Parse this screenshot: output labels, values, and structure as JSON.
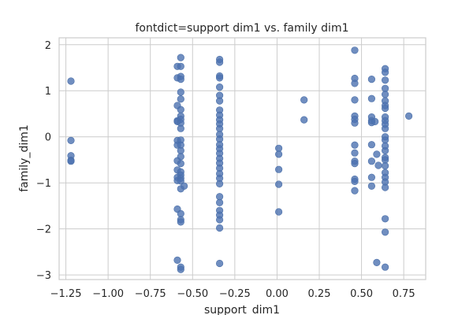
{
  "chart_data": {
    "type": "scatter",
    "title": "fontdict=support dim1 vs. family dim1",
    "xlabel": "support_dim1",
    "ylabel": "family_dim1",
    "xlim": [
      -1.29,
      0.88
    ],
    "ylim": [
      -3.1,
      2.15
    ],
    "xticks": [
      -1.25,
      -1.0,
      -0.75,
      -0.5,
      -0.25,
      0.0,
      0.25,
      0.5,
      0.75
    ],
    "xtick_labels": [
      "−1.25",
      "−1.00",
      "−0.75",
      "−0.50",
      "−0.25",
      "0.00",
      "0.25",
      "0.50",
      "0.75"
    ],
    "yticks": [
      -3,
      -2,
      -1,
      0,
      1,
      2
    ],
    "ytick_labels": [
      "−3",
      "−2",
      "−1",
      "0",
      "1",
      "2"
    ],
    "grid": true,
    "color": "#4c72b0",
    "alpha": 0.8,
    "points": [
      [
        -1.22,
        1.21
      ],
      [
        -1.22,
        -0.08
      ],
      [
        -1.22,
        -0.41
      ],
      [
        -1.22,
        -0.51
      ],
      [
        -1.22,
        -0.53
      ],
      [
        -0.59,
        1.53
      ],
      [
        -0.59,
        1.28
      ],
      [
        -0.59,
        0.68
      ],
      [
        -0.59,
        0.35
      ],
      [
        -0.59,
        0.33
      ],
      [
        -0.59,
        -0.08
      ],
      [
        -0.59,
        -0.18
      ],
      [
        -0.59,
        -0.52
      ],
      [
        -0.59,
        -0.72
      ],
      [
        -0.59,
        -0.88
      ],
      [
        -0.59,
        -0.95
      ],
      [
        -0.59,
        -1.57
      ],
      [
        -0.59,
        -2.68
      ],
      [
        -0.57,
        1.72
      ],
      [
        -0.57,
        1.53
      ],
      [
        -0.57,
        1.31
      ],
      [
        -0.57,
        1.25
      ],
      [
        -0.57,
        0.97
      ],
      [
        -0.57,
        0.82
      ],
      [
        -0.57,
        0.59
      ],
      [
        -0.57,
        0.45
      ],
      [
        -0.57,
        0.38
      ],
      [
        -0.57,
        0.3
      ],
      [
        -0.57,
        0.18
      ],
      [
        -0.57,
        -0.07
      ],
      [
        -0.57,
        -0.18
      ],
      [
        -0.57,
        -0.3
      ],
      [
        -0.57,
        -0.43
      ],
      [
        -0.57,
        -0.58
      ],
      [
        -0.57,
        -0.76
      ],
      [
        -0.57,
        -0.83
      ],
      [
        -0.57,
        -0.9
      ],
      [
        -0.57,
        -0.96
      ],
      [
        -0.57,
        -1.13
      ],
      [
        -0.57,
        -1.67
      ],
      [
        -0.57,
        -1.8
      ],
      [
        -0.57,
        -1.85
      ],
      [
        -0.57,
        -2.83
      ],
      [
        -0.57,
        -2.88
      ],
      [
        -0.55,
        -1.07
      ],
      [
        -0.34,
        1.68
      ],
      [
        -0.34,
        1.62
      ],
      [
        -0.34,
        1.32
      ],
      [
        -0.34,
        1.28
      ],
      [
        -0.34,
        1.08
      ],
      [
        -0.34,
        0.9
      ],
      [
        -0.34,
        0.78
      ],
      [
        -0.34,
        0.58
      ],
      [
        -0.34,
        0.47
      ],
      [
        -0.34,
        0.37
      ],
      [
        -0.34,
        0.28
      ],
      [
        -0.34,
        0.18
      ],
      [
        -0.34,
        0.05
      ],
      [
        -0.34,
        -0.05
      ],
      [
        -0.34,
        -0.17
      ],
      [
        -0.34,
        -0.26
      ],
      [
        -0.34,
        -0.36
      ],
      [
        -0.34,
        -0.47
      ],
      [
        -0.34,
        -0.57
      ],
      [
        -0.34,
        -0.68
      ],
      [
        -0.34,
        -0.8
      ],
      [
        -0.34,
        -0.9
      ],
      [
        -0.34,
        -1.02
      ],
      [
        -0.34,
        -1.3
      ],
      [
        -0.34,
        -1.43
      ],
      [
        -0.34,
        -1.6
      ],
      [
        -0.34,
        -1.7
      ],
      [
        -0.34,
        -1.8
      ],
      [
        -0.34,
        -1.98
      ],
      [
        -0.34,
        -2.75
      ],
      [
        0.01,
        -0.25
      ],
      [
        0.01,
        -0.38
      ],
      [
        0.01,
        -0.71
      ],
      [
        0.01,
        -1.03
      ],
      [
        0.01,
        -1.63
      ],
      [
        0.16,
        0.8
      ],
      [
        0.16,
        0.37
      ],
      [
        0.46,
        1.88
      ],
      [
        0.46,
        1.27
      ],
      [
        0.46,
        1.16
      ],
      [
        0.46,
        0.8
      ],
      [
        0.46,
        0.45
      ],
      [
        0.46,
        0.38
      ],
      [
        0.46,
        0.3
      ],
      [
        0.46,
        -0.18
      ],
      [
        0.46,
        -0.35
      ],
      [
        0.46,
        -0.53
      ],
      [
        0.46,
        -0.58
      ],
      [
        0.46,
        -0.92
      ],
      [
        0.46,
        -0.97
      ],
      [
        0.46,
        -1.17
      ],
      [
        0.56,
        1.25
      ],
      [
        0.56,
        0.83
      ],
      [
        0.56,
        0.43
      ],
      [
        0.56,
        0.35
      ],
      [
        0.56,
        0.31
      ],
      [
        0.56,
        -0.17
      ],
      [
        0.56,
        -0.53
      ],
      [
        0.56,
        -0.88
      ],
      [
        0.56,
        -1.07
      ],
      [
        0.58,
        0.33
      ],
      [
        0.59,
        -0.38
      ],
      [
        0.59,
        -2.73
      ],
      [
        0.6,
        -0.62
      ],
      [
        0.64,
        1.48
      ],
      [
        0.64,
        1.4
      ],
      [
        0.64,
        1.23
      ],
      [
        0.64,
        1.05
      ],
      [
        0.64,
        0.92
      ],
      [
        0.64,
        0.78
      ],
      [
        0.64,
        0.68
      ],
      [
        0.64,
        0.62
      ],
      [
        0.64,
        0.43
      ],
      [
        0.64,
        0.35
      ],
      [
        0.64,
        0.27
      ],
      [
        0.64,
        0.18
      ],
      [
        0.64,
        0.0
      ],
      [
        0.64,
        -0.07
      ],
      [
        0.64,
        -0.2
      ],
      [
        0.64,
        -0.3
      ],
      [
        0.64,
        -0.45
      ],
      [
        0.64,
        -0.5
      ],
      [
        0.64,
        -0.63
      ],
      [
        0.64,
        -0.78
      ],
      [
        0.64,
        -0.88
      ],
      [
        0.64,
        -0.98
      ],
      [
        0.64,
        -1.1
      ],
      [
        0.64,
        -1.78
      ],
      [
        0.64,
        -2.07
      ],
      [
        0.64,
        -2.83
      ],
      [
        0.78,
        0.45
      ]
    ]
  }
}
